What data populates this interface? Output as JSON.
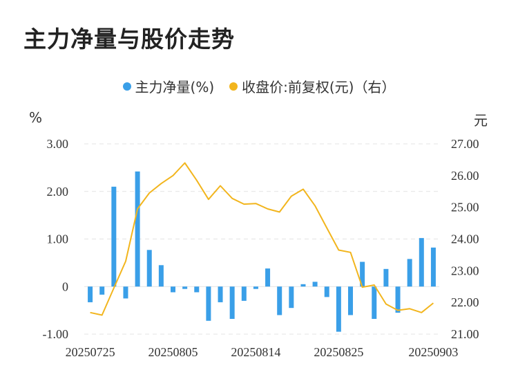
{
  "title": "主力净量与股价走势",
  "legend": {
    "net": "主力净量(%)",
    "price": "收盘价:前复权(元)（右）"
  },
  "units": {
    "left": "%",
    "right": "元"
  },
  "colors": {
    "bar": "#3a9fe8",
    "line": "#f2b51d",
    "grid": "#e3e3e3"
  },
  "chart_data": {
    "type": "bar+line",
    "x_tick_labels": [
      "20250725",
      "20250805",
      "20250814",
      "20250825",
      "20250903"
    ],
    "x_tick_indices": [
      0,
      7,
      14,
      21,
      29
    ],
    "left_axis": {
      "ylim": [
        -1.0,
        3.0
      ],
      "ticks": [
        3.0,
        2.0,
        1.0,
        0,
        -1.0
      ],
      "tick_labels": [
        "3.00",
        "2.00",
        "1.00",
        "0",
        "-1.00"
      ]
    },
    "right_axis": {
      "ylim": [
        21.0,
        27.0
      ],
      "ticks": [
        27.0,
        26.0,
        25.0,
        24.0,
        23.0,
        22.0,
        21.0
      ],
      "tick_labels": [
        "27.00",
        "26.00",
        "25.00",
        "24.00",
        "23.00",
        "22.00",
        "21.00"
      ]
    },
    "series": [
      {
        "name": "主力净量(%)",
        "type": "bar",
        "axis": "left",
        "values": [
          -0.33,
          -0.17,
          2.1,
          -0.25,
          2.42,
          0.77,
          0.45,
          -0.12,
          -0.05,
          -0.12,
          -0.72,
          -0.33,
          -0.68,
          -0.3,
          -0.05,
          0.38,
          -0.6,
          -0.45,
          0.05,
          0.1,
          -0.22,
          -0.95,
          -0.6,
          0.52,
          -0.68,
          0.37,
          -0.55,
          0.58,
          1.02,
          0.82
        ]
      },
      {
        "name": "收盘价:前复权(元)（右）",
        "type": "line",
        "axis": "right",
        "values": [
          21.68,
          21.6,
          22.45,
          23.3,
          24.95,
          25.45,
          25.75,
          26.0,
          26.4,
          25.85,
          25.25,
          25.68,
          25.28,
          25.1,
          25.12,
          24.95,
          24.85,
          25.35,
          25.57,
          25.05,
          24.35,
          23.65,
          23.58,
          22.48,
          22.55,
          21.95,
          21.75,
          21.8,
          21.68,
          21.98
        ]
      }
    ]
  }
}
